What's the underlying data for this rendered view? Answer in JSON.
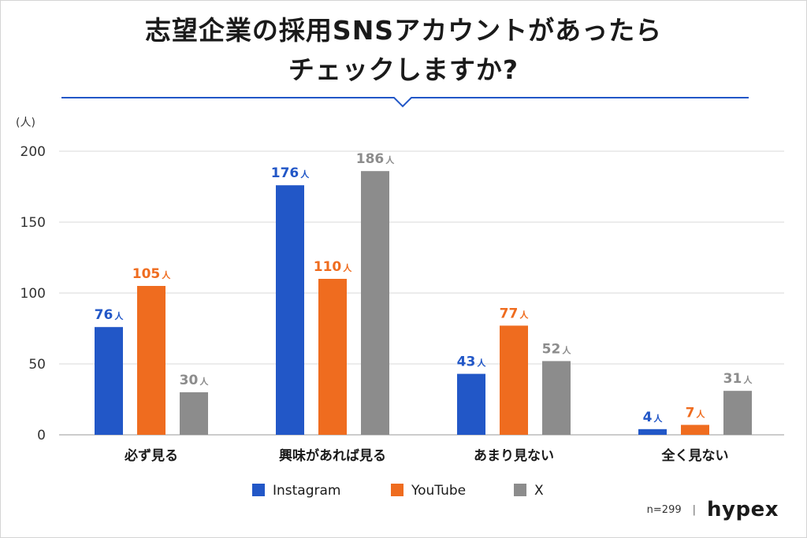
{
  "title_lines": [
    "志望企業の採用SNSアカウントがあったら",
    "チェックしますか?"
  ],
  "footer": {
    "n": "n=299",
    "separator": "|",
    "brand": "hypex"
  },
  "chart_data": {
    "type": "bar",
    "y_unit": "(人)",
    "value_suffix": "人",
    "ylim": [
      0,
      200
    ],
    "yticks": [
      0,
      50,
      100,
      150,
      200
    ],
    "grid": true,
    "legend": "bottom",
    "categories": [
      "必ず見る",
      "興味があれば見る",
      "あまり見ない",
      "全く見ない"
    ],
    "series": [
      {
        "name": "Instagram",
        "color": "#2257c7",
        "values": [
          76,
          176,
          43,
          4
        ]
      },
      {
        "name": "YouTube",
        "color": "#ef6c1f",
        "values": [
          105,
          110,
          77,
          7
        ]
      },
      {
        "name": "X",
        "color": "#8c8c8c",
        "values": [
          30,
          186,
          52,
          31
        ]
      }
    ]
  }
}
